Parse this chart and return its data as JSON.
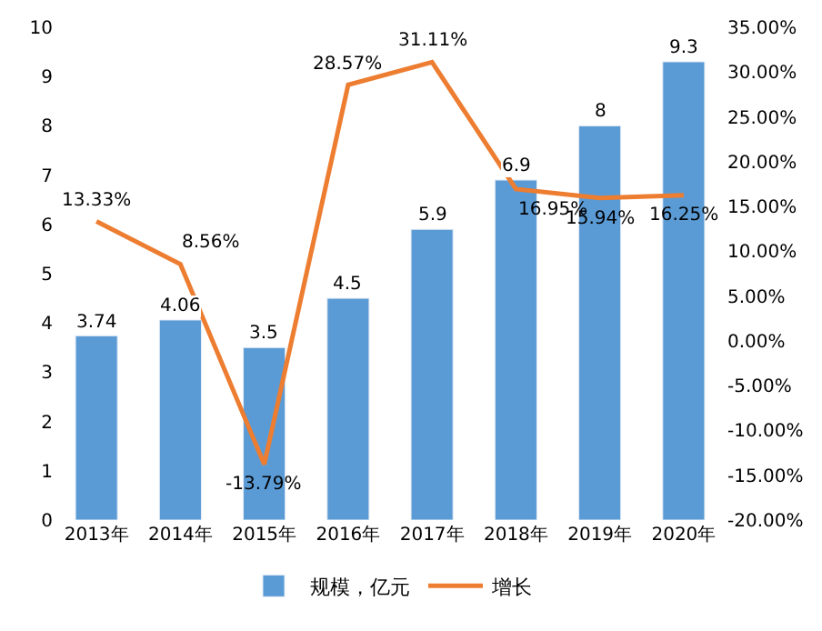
{
  "chart_data": {
    "type": "bar",
    "categories": [
      "2013年",
      "2014年",
      "2015年",
      "2016年",
      "2017年",
      "2018年",
      "2019年",
      "2020年"
    ],
    "series": [
      {
        "name": "规模，亿元",
        "color": "#5b9bd5",
        "values": [
          3.74,
          4.06,
          3.5,
          4.5,
          5.9,
          6.9,
          8,
          9.3
        ],
        "value_labels": [
          "3.74",
          "4.06",
          "3.5",
          "4.5",
          "5.9",
          "6.9",
          "8",
          "9.3"
        ]
      },
      {
        "name": "增长",
        "type": "line",
        "axis": "y2",
        "color": "#ed7d31",
        "values": [
          13.33,
          8.56,
          -13.79,
          28.57,
          31.11,
          16.95,
          15.94,
          16.25
        ],
        "value_labels": [
          "13.33%",
          "8.56%",
          "-13.79%",
          "28.57%",
          "31.11%",
          "16.95%",
          "15.94%",
          "16.25%"
        ]
      }
    ],
    "ylim": [
      0,
      10
    ],
    "yticks": [
      0,
      1,
      2,
      3,
      4,
      5,
      6,
      7,
      8,
      9,
      10
    ],
    "y2lim": [
      -20,
      35
    ],
    "y2ticks": [
      {
        "value": -20,
        "label": "-20.00%"
      },
      {
        "value": -15,
        "label": "-15.00%"
      },
      {
        "value": -10,
        "label": "-10.00%"
      },
      {
        "value": -5,
        "label": "-5.00%"
      },
      {
        "value": 0,
        "label": "0.00%"
      },
      {
        "value": 5,
        "label": "5.00%"
      },
      {
        "value": 10,
        "label": "10.00%"
      },
      {
        "value": 15,
        "label": "15.00%"
      },
      {
        "value": 20,
        "label": "20.00%"
      },
      {
        "value": 25,
        "label": "25.00%"
      },
      {
        "value": 30,
        "label": "30.00%"
      },
      {
        "value": 35,
        "label": "35.00%"
      }
    ],
    "legend": "bottom",
    "marker": "none",
    "line_style": "solid"
  }
}
